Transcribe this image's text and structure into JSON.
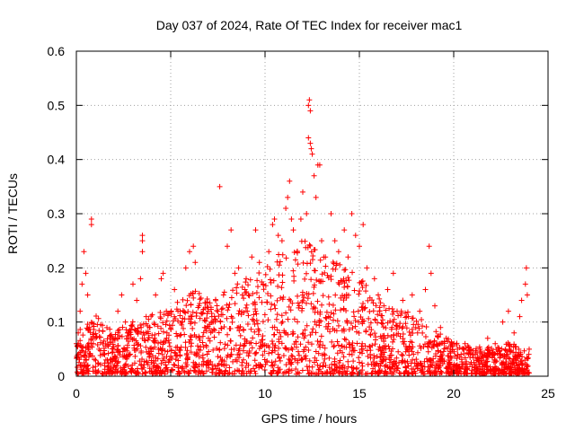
{
  "chart_data": {
    "type": "scatter",
    "title": "Day 037 of 2024, Rate Of TEC Index for receiver mac1",
    "xlabel": "GPS time / hours",
    "ylabel": "ROTI / TECUs",
    "xlim": [
      0,
      25
    ],
    "ylim": [
      0,
      0.6
    ],
    "xticks": [
      "0",
      "5",
      "10",
      "15",
      "20",
      "25"
    ],
    "yticks": [
      "0",
      "0.1",
      "0.2",
      "0.3",
      "0.4",
      "0.5",
      "0.6"
    ],
    "xtick_values": [
      0,
      5,
      10,
      15,
      20,
      25
    ],
    "ytick_values": [
      0,
      0.1,
      0.2,
      0.3,
      0.4,
      0.5,
      0.6
    ],
    "grid": true,
    "marker": "+",
    "color": "#ff0000",
    "series": [
      {
        "values": [
          [
            0.0,
            0.06
          ],
          [
            0.1,
            0.08
          ],
          [
            0.2,
            0.12
          ],
          [
            0.3,
            0.17
          ],
          [
            0.4,
            0.23
          ],
          [
            0.5,
            0.19
          ],
          [
            0.6,
            0.15
          ],
          [
            0.7,
            0.09
          ],
          [
            0.8,
            0.28
          ],
          [
            0.8,
            0.29
          ],
          [
            0.9,
            0.06
          ],
          [
            1.0,
            0.07
          ],
          [
            1.2,
            0.05
          ],
          [
            1.5,
            0.04
          ],
          [
            1.8,
            0.03
          ],
          [
            2.0,
            0.07
          ],
          [
            2.2,
            0.12
          ],
          [
            2.4,
            0.15
          ],
          [
            2.6,
            0.1
          ],
          [
            2.8,
            0.08
          ],
          [
            3.0,
            0.17
          ],
          [
            3.2,
            0.14
          ],
          [
            3.4,
            0.18
          ],
          [
            3.5,
            0.25
          ],
          [
            3.5,
            0.26
          ],
          [
            3.5,
            0.23
          ],
          [
            3.7,
            0.11
          ],
          [
            3.9,
            0.09
          ],
          [
            4.2,
            0.15
          ],
          [
            4.5,
            0.18
          ],
          [
            4.6,
            0.19
          ],
          [
            4.8,
            0.08
          ],
          [
            5.2,
            0.16
          ],
          [
            5.5,
            0.12
          ],
          [
            5.8,
            0.2
          ],
          [
            6.0,
            0.23
          ],
          [
            6.2,
            0.24
          ],
          [
            6.3,
            0.21
          ],
          [
            6.5,
            0.13
          ],
          [
            6.8,
            0.09
          ],
          [
            7.0,
            0.07
          ],
          [
            7.2,
            0.1
          ],
          [
            7.5,
            0.12
          ],
          [
            7.6,
            0.35
          ],
          [
            7.8,
            0.15
          ],
          [
            8.0,
            0.24
          ],
          [
            8.2,
            0.27
          ],
          [
            8.4,
            0.19
          ],
          [
            8.6,
            0.2
          ],
          [
            8.8,
            0.15
          ],
          [
            9.0,
            0.18
          ],
          [
            9.3,
            0.22
          ],
          [
            9.5,
            0.27
          ],
          [
            9.7,
            0.21
          ],
          [
            9.9,
            0.17
          ],
          [
            10.2,
            0.23
          ],
          [
            10.4,
            0.28
          ],
          [
            10.5,
            0.29
          ],
          [
            10.7,
            0.26
          ],
          [
            10.9,
            0.25
          ],
          [
            11.1,
            0.31
          ],
          [
            11.2,
            0.33
          ],
          [
            11.3,
            0.36
          ],
          [
            11.4,
            0.29
          ],
          [
            11.5,
            0.27
          ],
          [
            11.7,
            0.23
          ],
          [
            11.9,
            0.29
          ],
          [
            12.0,
            0.34
          ],
          [
            12.2,
            0.3
          ],
          [
            12.3,
            0.44
          ],
          [
            12.3,
            0.5
          ],
          [
            12.35,
            0.51
          ],
          [
            12.4,
            0.49
          ],
          [
            12.4,
            0.43
          ],
          [
            12.45,
            0.42
          ],
          [
            12.5,
            0.41
          ],
          [
            12.6,
            0.37
          ],
          [
            12.7,
            0.33
          ],
          [
            12.8,
            0.39
          ],
          [
            12.9,
            0.39
          ],
          [
            13.0,
            0.25
          ],
          [
            13.2,
            0.22
          ],
          [
            13.5,
            0.3
          ],
          [
            13.7,
            0.25
          ],
          [
            13.9,
            0.23
          ],
          [
            14.2,
            0.27
          ],
          [
            14.4,
            0.22
          ],
          [
            14.6,
            0.3
          ],
          [
            14.8,
            0.26
          ],
          [
            15.0,
            0.24
          ],
          [
            15.2,
            0.28
          ],
          [
            15.4,
            0.2
          ],
          [
            15.8,
            0.18
          ],
          [
            16.0,
            0.15
          ],
          [
            16.3,
            0.13
          ],
          [
            16.5,
            0.16
          ],
          [
            16.8,
            0.19
          ],
          [
            17.0,
            0.12
          ],
          [
            17.3,
            0.14
          ],
          [
            17.6,
            0.11
          ],
          [
            17.8,
            0.15
          ],
          [
            18.2,
            0.12
          ],
          [
            18.5,
            0.16
          ],
          [
            18.7,
            0.24
          ],
          [
            18.8,
            0.19
          ],
          [
            19.0,
            0.13
          ],
          [
            19.3,
            0.09
          ],
          [
            19.6,
            0.07
          ],
          [
            19.9,
            0.06
          ],
          [
            20.2,
            0.05
          ],
          [
            20.6,
            0.06
          ],
          [
            21.0,
            0.04
          ],
          [
            21.4,
            0.05
          ],
          [
            21.8,
            0.07
          ],
          [
            22.2,
            0.06
          ],
          [
            22.6,
            0.1
          ],
          [
            22.9,
            0.12
          ],
          [
            23.2,
            0.08
          ],
          [
            23.5,
            0.11
          ],
          [
            23.6,
            0.14
          ],
          [
            23.8,
            0.17
          ],
          [
            23.85,
            0.2
          ],
          [
            23.9,
            0.15
          ],
          [
            24.0,
            0.05
          ]
        ]
      }
    ],
    "envelope": {
      "x": [
        0,
        1,
        2,
        3,
        4,
        5,
        6,
        7,
        8,
        9,
        10,
        11,
        12,
        13,
        14,
        15,
        16,
        17,
        18,
        19,
        20,
        21,
        22,
        23,
        24
      ],
      "upper": [
        0.1,
        0.11,
        0.08,
        0.1,
        0.11,
        0.12,
        0.16,
        0.14,
        0.16,
        0.18,
        0.2,
        0.23,
        0.25,
        0.22,
        0.21,
        0.18,
        0.14,
        0.12,
        0.11,
        0.08,
        0.06,
        0.05,
        0.05,
        0.06,
        0.04
      ],
      "points_per_hour": 90
    }
  }
}
